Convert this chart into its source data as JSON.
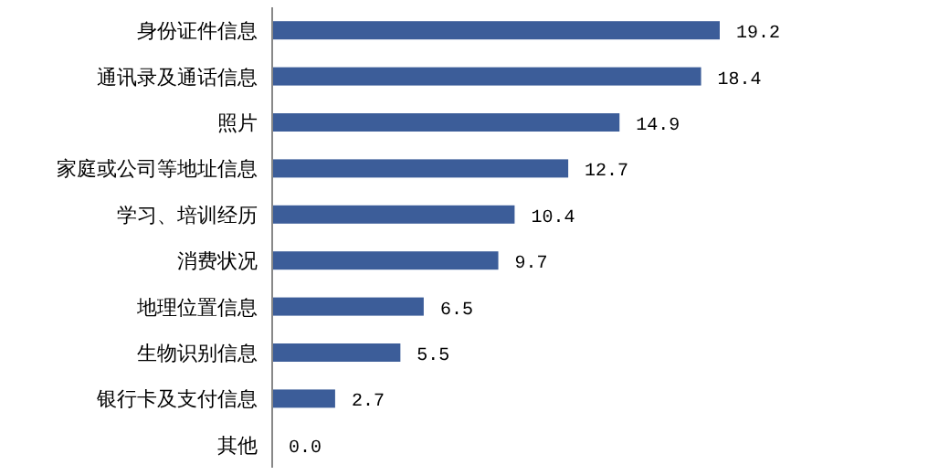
{
  "chart_data": {
    "type": "bar",
    "orientation": "horizontal",
    "categories": [
      "身份证件信息",
      "通讯录及通话信息",
      "照片",
      "家庭或公司等地址信息",
      "学习、培训经历",
      "消费状况",
      "地理位置信息",
      "生物识别信息",
      "银行卡及支付信息",
      "其他"
    ],
    "values": [
      19.2,
      18.4,
      14.9,
      12.7,
      10.4,
      9.7,
      6.5,
      5.5,
      2.7,
      0.0
    ],
    "value_labels": [
      "19.2",
      "18.4",
      "14.9",
      "12.7",
      "10.4",
      "9.7",
      "6.5",
      "5.5",
      "2.7",
      "0.0"
    ],
    "color": "#3c5d99"
  }
}
